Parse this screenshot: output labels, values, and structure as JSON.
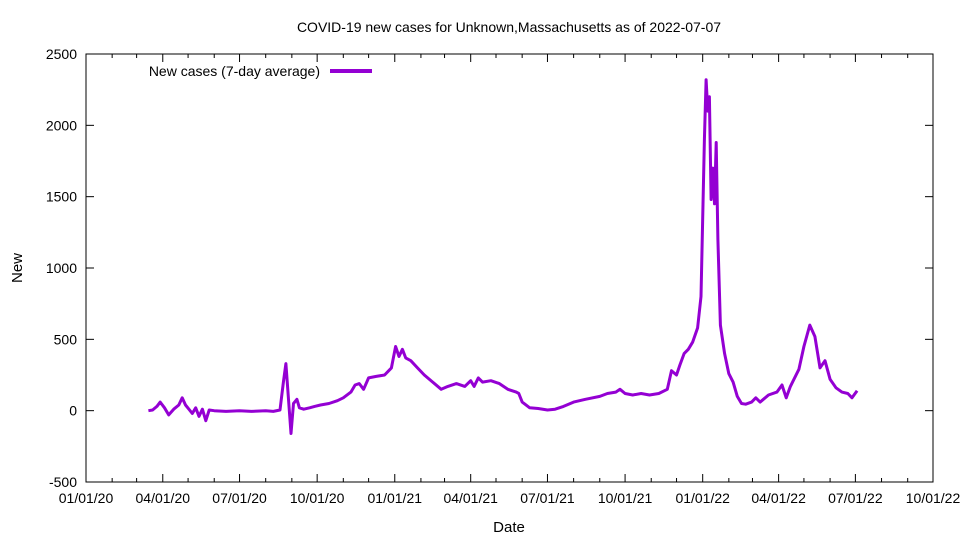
{
  "chart_data": {
    "type": "line",
    "title": "COVID-19 new cases for Unknown,Massachusetts as of 2022-07-07",
    "xlabel": "Date",
    "ylabel": "New",
    "xlim": [
      "2020-01-01",
      "2022-10-01"
    ],
    "ylim": [
      -500,
      2500
    ],
    "x_tick_labels": [
      "01/01/20",
      "04/01/20",
      "07/01/20",
      "10/01/20",
      "01/01/21",
      "04/01/21",
      "07/01/21",
      "10/01/21",
      "01/01/22",
      "04/01/22",
      "07/01/22",
      "10/01/22"
    ],
    "y_tick_values": [
      -500,
      0,
      500,
      1000,
      1500,
      2000,
      2500
    ],
    "legend_position": "top-left",
    "grid": false,
    "series": [
      {
        "name": "New cases (7-day average)",
        "color": "#9400d3",
        "points": [
          [
            "2020-03-15",
            0
          ],
          [
            "2020-03-20",
            5
          ],
          [
            "2020-03-25",
            30
          ],
          [
            "2020-03-29",
            60
          ],
          [
            "2020-04-03",
            20
          ],
          [
            "2020-04-08",
            -30
          ],
          [
            "2020-04-14",
            10
          ],
          [
            "2020-04-20",
            40
          ],
          [
            "2020-04-24",
            90
          ],
          [
            "2020-04-28",
            40
          ],
          [
            "2020-05-02",
            10
          ],
          [
            "2020-05-06",
            -20
          ],
          [
            "2020-05-10",
            20
          ],
          [
            "2020-05-14",
            -40
          ],
          [
            "2020-05-18",
            10
          ],
          [
            "2020-05-22",
            -70
          ],
          [
            "2020-05-26",
            5
          ],
          [
            "2020-06-01",
            0
          ],
          [
            "2020-06-15",
            -5
          ],
          [
            "2020-07-01",
            0
          ],
          [
            "2020-07-15",
            -5
          ],
          [
            "2020-08-01",
            0
          ],
          [
            "2020-08-10",
            -5
          ],
          [
            "2020-08-18",
            5
          ],
          [
            "2020-08-22",
            200
          ],
          [
            "2020-08-25",
            330
          ],
          [
            "2020-08-28",
            80
          ],
          [
            "2020-08-31",
            -160
          ],
          [
            "2020-09-03",
            50
          ],
          [
            "2020-09-07",
            80
          ],
          [
            "2020-09-10",
            20
          ],
          [
            "2020-09-15",
            10
          ],
          [
            "2020-09-22",
            20
          ],
          [
            "2020-09-28",
            30
          ],
          [
            "2020-10-05",
            40
          ],
          [
            "2020-10-15",
            50
          ],
          [
            "2020-10-25",
            70
          ],
          [
            "2020-11-01",
            90
          ],
          [
            "2020-11-10",
            130
          ],
          [
            "2020-11-15",
            180
          ],
          [
            "2020-11-20",
            190
          ],
          [
            "2020-11-25",
            150
          ],
          [
            "2020-12-01",
            230
          ],
          [
            "2020-12-10",
            240
          ],
          [
            "2020-12-20",
            250
          ],
          [
            "2020-12-28",
            300
          ],
          [
            "2021-01-02",
            450
          ],
          [
            "2021-01-06",
            380
          ],
          [
            "2021-01-10",
            430
          ],
          [
            "2021-01-14",
            370
          ],
          [
            "2021-01-20",
            350
          ],
          [
            "2021-01-28",
            300
          ],
          [
            "2021-02-05",
            250
          ],
          [
            "2021-02-15",
            200
          ],
          [
            "2021-02-25",
            150
          ],
          [
            "2021-03-05",
            170
          ],
          [
            "2021-03-15",
            190
          ],
          [
            "2021-03-25",
            170
          ],
          [
            "2021-04-01",
            210
          ],
          [
            "2021-04-05",
            170
          ],
          [
            "2021-04-10",
            230
          ],
          [
            "2021-04-15",
            200
          ],
          [
            "2021-04-25",
            210
          ],
          [
            "2021-05-05",
            190
          ],
          [
            "2021-05-15",
            150
          ],
          [
            "2021-05-25",
            130
          ],
          [
            "2021-05-28",
            120
          ],
          [
            "2021-06-01",
            60
          ],
          [
            "2021-06-10",
            20
          ],
          [
            "2021-06-20",
            15
          ],
          [
            "2021-07-01",
            5
          ],
          [
            "2021-07-10",
            10
          ],
          [
            "2021-07-20",
            30
          ],
          [
            "2021-08-01",
            60
          ],
          [
            "2021-08-15",
            80
          ],
          [
            "2021-09-01",
            100
          ],
          [
            "2021-09-10",
            120
          ],
          [
            "2021-09-20",
            130
          ],
          [
            "2021-09-25",
            150
          ],
          [
            "2021-10-01",
            120
          ],
          [
            "2021-10-10",
            110
          ],
          [
            "2021-10-20",
            120
          ],
          [
            "2021-10-30",
            110
          ],
          [
            "2021-11-10",
            120
          ],
          [
            "2021-11-20",
            150
          ],
          [
            "2021-11-25",
            280
          ],
          [
            "2021-12-01",
            250
          ],
          [
            "2021-12-05",
            320
          ],
          [
            "2021-12-10",
            400
          ],
          [
            "2021-12-15",
            430
          ],
          [
            "2021-12-20",
            480
          ],
          [
            "2021-12-26",
            580
          ],
          [
            "2021-12-30",
            800
          ],
          [
            "2022-01-03",
            1900
          ],
          [
            "2022-01-05",
            2320
          ],
          [
            "2022-01-07",
            2100
          ],
          [
            "2022-01-09",
            2200
          ],
          [
            "2022-01-11",
            1480
          ],
          [
            "2022-01-13",
            1700
          ],
          [
            "2022-01-15",
            1450
          ],
          [
            "2022-01-17",
            1880
          ],
          [
            "2022-01-19",
            1200
          ],
          [
            "2022-01-22",
            600
          ],
          [
            "2022-01-27",
            400
          ],
          [
            "2022-02-01",
            260
          ],
          [
            "2022-02-06",
            200
          ],
          [
            "2022-02-11",
            100
          ],
          [
            "2022-02-16",
            50
          ],
          [
            "2022-02-21",
            45
          ],
          [
            "2022-02-28",
            60
          ],
          [
            "2022-03-05",
            90
          ],
          [
            "2022-03-10",
            60
          ],
          [
            "2022-03-20",
            110
          ],
          [
            "2022-03-30",
            130
          ],
          [
            "2022-04-05",
            180
          ],
          [
            "2022-04-10",
            90
          ],
          [
            "2022-04-15",
            170
          ],
          [
            "2022-04-25",
            290
          ],
          [
            "2022-05-01",
            450
          ],
          [
            "2022-05-08",
            600
          ],
          [
            "2022-05-14",
            520
          ],
          [
            "2022-05-20",
            300
          ],
          [
            "2022-05-26",
            350
          ],
          [
            "2022-06-01",
            220
          ],
          [
            "2022-06-08",
            160
          ],
          [
            "2022-06-15",
            130
          ],
          [
            "2022-06-22",
            120
          ],
          [
            "2022-06-27",
            90
          ],
          [
            "2022-07-03",
            140
          ]
        ]
      }
    ]
  }
}
